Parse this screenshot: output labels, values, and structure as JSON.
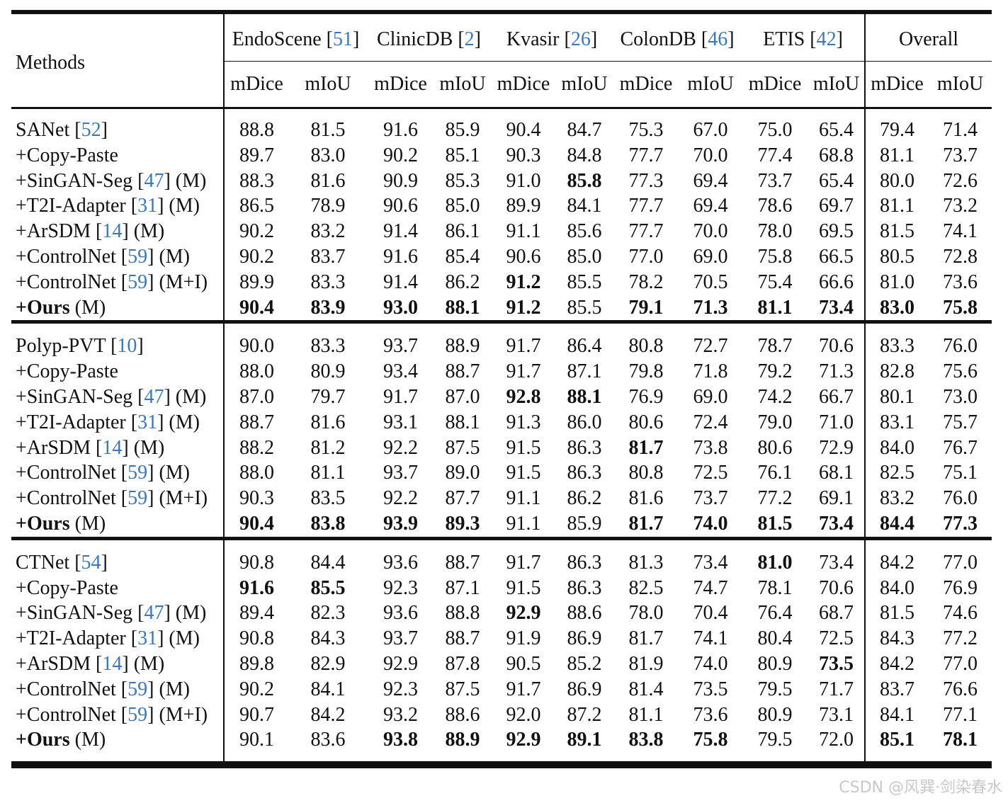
{
  "header": {
    "methods_label": "Methods",
    "datasets": [
      {
        "name": "EndoScene",
        "ref": "51"
      },
      {
        "name": "ClinicDB",
        "ref": "2"
      },
      {
        "name": "Kvasir",
        "ref": "26"
      },
      {
        "name": "ColonDB",
        "ref": "46"
      },
      {
        "name": "ETIS",
        "ref": "42"
      }
    ],
    "overall_label": "Overall",
    "metric_mdice": "mDice",
    "metric_miou": "mIoU"
  },
  "groups": [
    {
      "rows": [
        {
          "name": "SANet",
          "ref": "52",
          "suffix": "",
          "values": [
            "88.8",
            "81.5",
            "91.6",
            "85.9",
            "90.4",
            "84.7",
            "75.3",
            "67.0",
            "75.0",
            "65.4",
            "79.4",
            "71.4"
          ],
          "bold": []
        },
        {
          "name": "+Copy-Paste",
          "ref": "",
          "suffix": "",
          "values": [
            "89.7",
            "83.0",
            "90.2",
            "85.1",
            "90.3",
            "84.8",
            "77.7",
            "70.0",
            "77.4",
            "68.8",
            "81.1",
            "73.7"
          ],
          "bold": []
        },
        {
          "name": "+SinGAN-Seg",
          "ref": "47",
          "suffix": "(M)",
          "values": [
            "88.3",
            "81.6",
            "90.9",
            "85.3",
            "91.0",
            "85.8",
            "77.3",
            "69.4",
            "73.7",
            "65.4",
            "80.0",
            "72.6"
          ],
          "bold": [
            5
          ]
        },
        {
          "name": "+T2I-Adapter",
          "ref": "31",
          "suffix": "(M)",
          "values": [
            "86.5",
            "78.9",
            "90.6",
            "85.0",
            "89.9",
            "84.1",
            "77.7",
            "69.4",
            "78.6",
            "69.7",
            "81.1",
            "73.2"
          ],
          "bold": []
        },
        {
          "name": "+ArSDM",
          "ref": "14",
          "suffix": "(M)",
          "values": [
            "90.2",
            "83.2",
            "91.4",
            "86.1",
            "91.1",
            "85.6",
            "77.7",
            "70.0",
            "78.0",
            "69.5",
            "81.5",
            "74.1"
          ],
          "bold": []
        },
        {
          "name": "+ControlNet",
          "ref": "59",
          "suffix": "(M)",
          "values": [
            "90.2",
            "83.7",
            "91.6",
            "85.4",
            "90.6",
            "85.0",
            "77.0",
            "69.0",
            "75.8",
            "66.5",
            "80.5",
            "72.8"
          ],
          "bold": []
        },
        {
          "name": "+ControlNet",
          "ref": "59",
          "suffix": "(M+I)",
          "values": [
            "89.9",
            "83.3",
            "91.4",
            "86.2",
            "91.2",
            "85.5",
            "78.2",
            "70.5",
            "75.4",
            "66.6",
            "81.0",
            "73.6"
          ],
          "bold": [
            4
          ]
        },
        {
          "name": "+Ours",
          "ref": "",
          "suffix": "(M)",
          "ours": true,
          "values": [
            "90.4",
            "83.9",
            "93.0",
            "88.1",
            "91.2",
            "85.5",
            "79.1",
            "71.3",
            "81.1",
            "73.4",
            "83.0",
            "75.8"
          ],
          "bold": [
            0,
            1,
            2,
            3,
            4,
            6,
            7,
            8,
            9,
            10,
            11
          ]
        }
      ]
    },
    {
      "rows": [
        {
          "name": "Polyp-PVT",
          "ref": "10",
          "suffix": "",
          "values": [
            "90.0",
            "83.3",
            "93.7",
            "88.9",
            "91.7",
            "86.4",
            "80.8",
            "72.7",
            "78.7",
            "70.6",
            "83.3",
            "76.0"
          ],
          "bold": []
        },
        {
          "name": "+Copy-Paste",
          "ref": "",
          "suffix": "",
          "values": [
            "88.0",
            "80.9",
            "93.4",
            "88.7",
            "91.7",
            "87.1",
            "79.8",
            "71.8",
            "79.2",
            "71.3",
            "82.8",
            "75.6"
          ],
          "bold": []
        },
        {
          "name": "+SinGAN-Seg",
          "ref": "47",
          "suffix": "(M)",
          "values": [
            "87.0",
            "79.7",
            "91.7",
            "87.0",
            "92.8",
            "88.1",
            "76.9",
            "69.0",
            "74.2",
            "66.7",
            "80.1",
            "73.0"
          ],
          "bold": [
            4,
            5
          ]
        },
        {
          "name": "+T2I-Adapter",
          "ref": "31",
          "suffix": "(M)",
          "values": [
            "88.7",
            "81.6",
            "93.1",
            "88.1",
            "91.3",
            "86.0",
            "80.6",
            "72.4",
            "79.0",
            "71.0",
            "83.1",
            "75.7"
          ],
          "bold": []
        },
        {
          "name": "+ArSDM",
          "ref": "14",
          "suffix": "(M)",
          "values": [
            "88.2",
            "81.2",
            "92.2",
            "87.5",
            "91.5",
            "86.3",
            "81.7",
            "73.8",
            "80.6",
            "72.9",
            "84.0",
            "76.7"
          ],
          "bold": [
            6
          ]
        },
        {
          "name": "+ControlNet",
          "ref": "59",
          "suffix": "(M)",
          "values": [
            "88.0",
            "81.1",
            "93.7",
            "89.0",
            "91.5",
            "86.3",
            "80.8",
            "72.5",
            "76.1",
            "68.1",
            "82.5",
            "75.1"
          ],
          "bold": []
        },
        {
          "name": "+ControlNet",
          "ref": "59",
          "suffix": "(M+I)",
          "values": [
            "90.3",
            "83.5",
            "92.2",
            "87.7",
            "91.1",
            "86.2",
            "81.6",
            "73.7",
            "77.2",
            "69.1",
            "83.2",
            "76.0"
          ],
          "bold": []
        },
        {
          "name": "+Ours",
          "ref": "",
          "suffix": "(M)",
          "ours": true,
          "values": [
            "90.4",
            "83.8",
            "93.9",
            "89.3",
            "91.1",
            "85.9",
            "81.7",
            "74.0",
            "81.5",
            "73.4",
            "84.4",
            "77.3"
          ],
          "bold": [
            0,
            1,
            2,
            3,
            6,
            7,
            8,
            9,
            10,
            11
          ]
        }
      ]
    },
    {
      "rows": [
        {
          "name": "CTNet",
          "ref": "54",
          "suffix": "",
          "values": [
            "90.8",
            "84.4",
            "93.6",
            "88.7",
            "91.7",
            "86.3",
            "81.3",
            "73.4",
            "81.0",
            "73.4",
            "84.2",
            "77.0"
          ],
          "bold": [
            8
          ]
        },
        {
          "name": "+Copy-Paste",
          "ref": "",
          "suffix": "",
          "values": [
            "91.6",
            "85.5",
            "92.3",
            "87.1",
            "91.5",
            "86.3",
            "82.5",
            "74.7",
            "78.1",
            "70.6",
            "84.0",
            "76.9"
          ],
          "bold": [
            0,
            1
          ]
        },
        {
          "name": "+SinGAN-Seg",
          "ref": "47",
          "suffix": "(M)",
          "values": [
            "89.4",
            "82.3",
            "93.6",
            "88.8",
            "92.9",
            "88.6",
            "78.0",
            "70.4",
            "76.4",
            "68.7",
            "81.5",
            "74.6"
          ],
          "bold": [
            4
          ]
        },
        {
          "name": "+T2I-Adapter",
          "ref": "31",
          "suffix": "(M)",
          "values": [
            "90.8",
            "84.3",
            "93.7",
            "88.7",
            "91.9",
            "86.9",
            "81.7",
            "74.1",
            "80.4",
            "72.5",
            "84.3",
            "77.2"
          ],
          "bold": []
        },
        {
          "name": "+ArSDM",
          "ref": "14",
          "suffix": "(M)",
          "values": [
            "89.8",
            "82.9",
            "92.9",
            "87.8",
            "90.5",
            "85.2",
            "81.9",
            "74.0",
            "80.9",
            "73.5",
            "84.2",
            "77.0"
          ],
          "bold": [
            9
          ]
        },
        {
          "name": "+ControlNet",
          "ref": "59",
          "suffix": "(M)",
          "values": [
            "90.2",
            "84.1",
            "92.3",
            "87.5",
            "91.7",
            "86.9",
            "81.4",
            "73.5",
            "79.5",
            "71.7",
            "83.7",
            "76.6"
          ],
          "bold": []
        },
        {
          "name": "+ControlNet",
          "ref": "59",
          "suffix": "(M+I)",
          "values": [
            "90.7",
            "84.2",
            "93.2",
            "88.6",
            "92.0",
            "87.2",
            "81.1",
            "73.6",
            "80.9",
            "73.1",
            "84.1",
            "77.1"
          ],
          "bold": []
        },
        {
          "name": "+Ours",
          "ref": "",
          "suffix": "(M)",
          "ours": true,
          "values": [
            "90.1",
            "83.6",
            "93.8",
            "88.9",
            "92.9",
            "89.1",
            "83.8",
            "75.8",
            "79.5",
            "72.0",
            "85.1",
            "78.1"
          ],
          "bold": [
            2,
            3,
            4,
            5,
            6,
            7,
            10,
            11
          ]
        }
      ]
    }
  ],
  "watermark": "CSDN @风巽·剑染春水"
}
